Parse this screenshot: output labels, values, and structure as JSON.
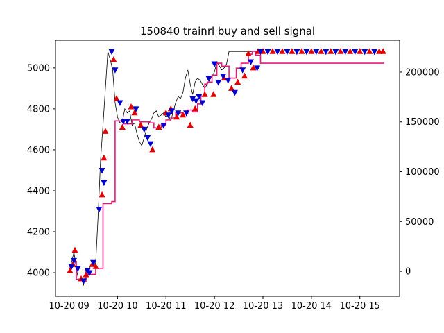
{
  "chart_data": {
    "type": "line",
    "title": "150840 trainrl buy and sell signal",
    "xlabel": "",
    "ylabel": "",
    "xlim": [
      8.72,
      15.82
    ],
    "ylim": [
      3885,
      5135
    ],
    "y2lim": [
      -25000,
      232000
    ],
    "x_ticks": [
      9,
      10,
      11,
      12,
      13,
      14,
      15
    ],
    "x_tick_labels": [
      "10-20 09",
      "10-20 10",
      "10-20 11",
      "10-20 12",
      "10-20 13",
      "10-20 14",
      "10-20 15"
    ],
    "y_ticks": [
      4000,
      4200,
      4400,
      4600,
      4800,
      5000
    ],
    "y_tick_labels": [
      "4000",
      "4200",
      "4400",
      "4600",
      "4800",
      "5000"
    ],
    "y2_ticks": [
      0,
      50000,
      100000,
      150000,
      200000
    ],
    "y2_tick_labels": [
      "0",
      "50000",
      "100000",
      "150000",
      "200000"
    ],
    "colors": {
      "price": "#000000",
      "equity": "#e6197a",
      "buy": "#e00000",
      "sell": "#0000cc",
      "frame": "#000000"
    },
    "series": [
      {
        "axis": "left",
        "x": [
          9.0,
          9.05,
          9.1,
          9.15,
          9.2,
          9.25,
          9.3,
          9.35,
          9.4,
          9.45,
          9.5,
          9.55,
          9.6,
          9.65,
          9.7,
          9.75,
          9.8,
          9.85,
          9.9,
          9.95,
          10.0,
          10.05,
          10.1,
          10.15,
          10.2,
          10.25,
          10.3,
          10.35,
          10.4,
          10.45,
          10.5,
          10.55,
          10.6,
          10.65,
          10.7,
          10.75,
          10.8,
          10.85,
          10.9,
          10.95,
          11.0,
          11.05,
          11.1,
          11.15,
          11.2,
          11.25,
          11.3,
          11.35,
          11.4,
          11.45,
          11.5,
          11.55,
          11.6,
          11.65,
          11.7,
          11.75,
          11.8,
          11.85,
          11.9,
          11.95,
          12.0,
          12.05,
          12.1,
          12.15,
          12.2,
          12.25,
          12.3,
          12.35,
          12.4,
          12.45,
          12.5,
          12.55,
          12.6,
          12.65,
          12.7,
          12.75,
          12.8,
          12.85,
          12.9
        ],
        "values": [
          4010,
          4050,
          4100,
          4020,
          3960,
          3970,
          3940,
          4010,
          4000,
          4040,
          4030,
          4050,
          4280,
          4550,
          4720,
          4900,
          5080,
          5040,
          4990,
          4830,
          4760,
          4730,
          4740,
          4800,
          4780,
          4790,
          4720,
          4730,
          4680,
          4640,
          4620,
          4660,
          4700,
          4730,
          4750,
          4780,
          4790,
          4760,
          4770,
          4780,
          4760,
          4770,
          4740,
          4790,
          4830,
          4860,
          4850,
          4880,
          4950,
          4990,
          4920,
          4870,
          4930,
          4950,
          4940,
          4920,
          4900,
          4920,
          4940,
          4960,
          4980,
          5030,
          5010,
          4990,
          5000,
          5020,
          5080,
          5080,
          5080,
          5080,
          5080,
          5080,
          5080,
          5080,
          5080,
          5080,
          5080,
          5080,
          5080
        ]
      },
      {
        "axis": "right",
        "x": [
          9.0,
          9.1,
          9.15,
          9.3,
          9.35,
          9.55,
          9.7,
          9.88,
          9.95,
          10.02,
          10.12,
          10.3,
          10.45,
          10.65,
          10.75,
          10.9,
          11.0,
          11.1,
          11.2,
          11.35,
          11.45,
          11.55,
          11.65,
          11.72,
          11.8,
          11.85,
          11.95,
          12.05,
          12.15,
          12.3,
          12.45,
          12.55,
          12.62,
          12.7,
          12.78,
          12.85,
          12.95,
          13.5,
          14.5,
          15.5
        ],
        "values": [
          5000,
          10000,
          -8000,
          -10000,
          -3000,
          3000,
          68000,
          70000,
          151000,
          151000,
          148000,
          152000,
          150000,
          149000,
          144000,
          147000,
          152000,
          154000,
          159000,
          158000,
          162000,
          160000,
          168000,
          176000,
          188000,
          190000,
          197000,
          209000,
          206000,
          194000,
          204000,
          209000,
          209000,
          218000,
          221000,
          217000,
          209000,
          209000,
          209000,
          209000
        ]
      }
    ],
    "buy_signals": {
      "x": [
        9.02,
        9.08,
        9.12,
        9.25,
        9.35,
        9.48,
        9.55,
        9.68,
        9.72,
        9.75,
        9.92,
        9.98,
        10.1,
        10.28,
        10.35,
        10.48,
        10.72,
        10.85,
        11.0,
        11.1,
        11.22,
        11.35,
        11.5,
        11.6,
        11.8,
        11.98,
        12.2,
        12.35,
        12.48,
        12.62,
        12.7,
        12.8,
        12.9,
        13.0,
        13.2,
        13.4,
        13.6,
        13.8,
        14.0,
        14.2,
        14.4,
        14.6,
        14.8,
        15.0,
        15.2,
        15.4,
        15.48
      ],
      "values": [
        4010,
        4040,
        4110,
        3970,
        3990,
        4040,
        4030,
        4380,
        4560,
        4690,
        5040,
        4850,
        4710,
        4810,
        4780,
        4720,
        4600,
        4710,
        4780,
        4800,
        4760,
        4770,
        4720,
        4800,
        4870,
        4870,
        4950,
        4900,
        4930,
        4960,
        5070,
        5000,
        5080,
        5080,
        5080,
        5080,
        5080,
        5080,
        5080,
        5080,
        5080,
        5080,
        5080,
        5080,
        5080,
        5080,
        5080
      ]
    },
    "sell_signals": {
      "x": [
        9.05,
        9.1,
        9.18,
        9.3,
        9.38,
        9.42,
        9.5,
        9.62,
        9.68,
        9.72,
        9.88,
        9.95,
        10.05,
        10.12,
        10.2,
        10.38,
        10.55,
        10.62,
        10.68,
        10.95,
        11.05,
        11.12,
        11.25,
        11.42,
        11.55,
        11.62,
        11.68,
        11.75,
        11.88,
        12.0,
        12.08,
        12.18,
        12.28,
        12.42,
        12.58,
        12.75,
        12.88,
        12.95,
        13.1,
        13.3,
        13.5,
        13.7,
        13.9,
        14.1,
        14.3,
        14.5,
        14.7,
        14.9,
        15.1,
        15.3
      ],
      "values": [
        4030,
        4060,
        4020,
        3960,
        4010,
        4000,
        4050,
        4310,
        4500,
        4440,
        5080,
        4990,
        4830,
        4740,
        4740,
        4800,
        4700,
        4660,
        4630,
        4720,
        4770,
        4790,
        4780,
        4780,
        4850,
        4840,
        4860,
        4830,
        4950,
        5020,
        4930,
        4960,
        4940,
        4880,
        4990,
        5030,
        5000,
        5080,
        5080,
        5080,
        5080,
        5080,
        5080,
        5080,
        5080,
        5080,
        5080,
        5080,
        5080,
        5080
      ]
    }
  }
}
